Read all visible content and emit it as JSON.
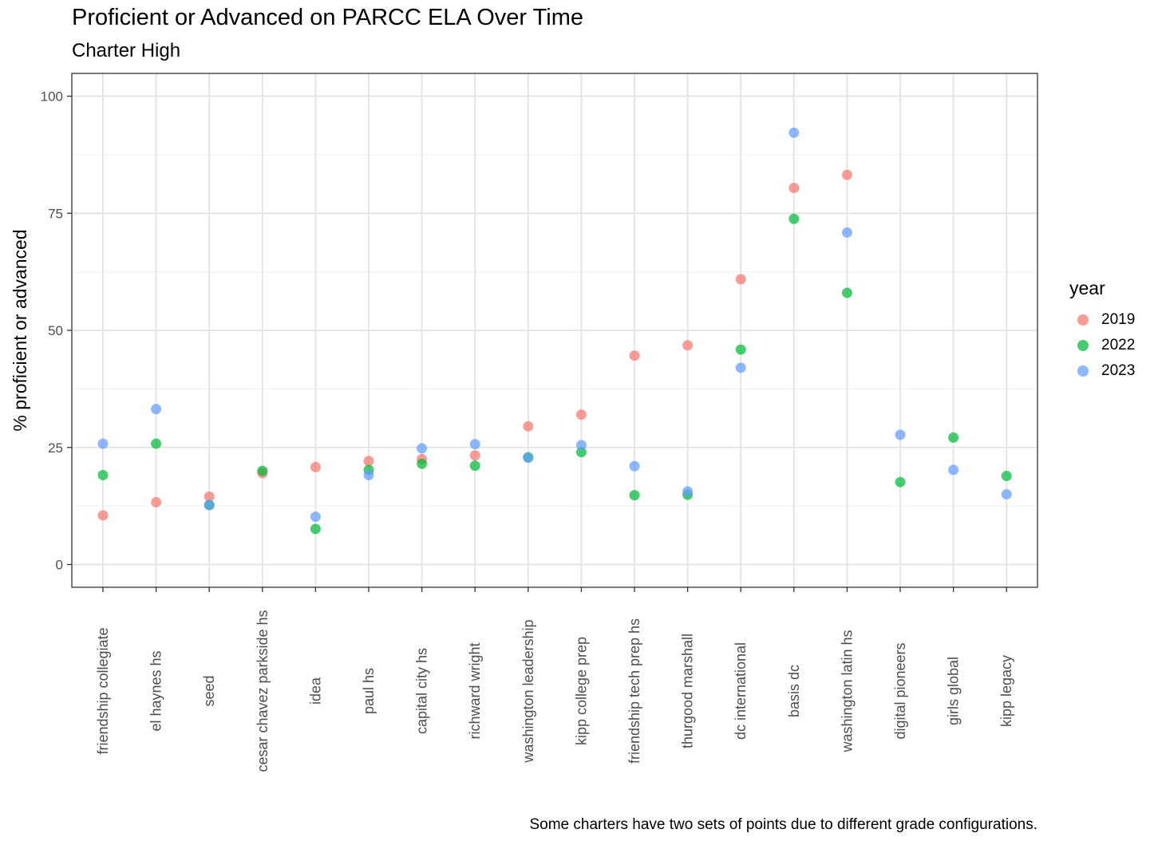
{
  "chart_data": {
    "type": "scatter",
    "title": "Proficient or Advanced on PARCC ELA Over Time",
    "subtitle": "Charter High",
    "xlabel": "",
    "ylabel": "% proficient or advanced",
    "caption": "Some charters have two sets of points due to different grade configurations.",
    "ylim": [
      -5,
      105
    ],
    "yticks": [
      0,
      25,
      50,
      75,
      100
    ],
    "grid": true,
    "legend": {
      "title": "year",
      "position": "right"
    },
    "categories": [
      "friendship collegiate",
      "el haynes hs",
      "seed",
      "cesar chavez parkside hs",
      "idea",
      "paul hs",
      "capital city hs",
      "richward wright",
      "washington leadership",
      "kipp college prep",
      "friendship tech prep hs",
      "thurgood marshall",
      "dc international",
      "basis dc",
      "washington latin hs",
      "digital pioneers",
      "girls global",
      "kipp legacy"
    ],
    "series": [
      {
        "name": "2019",
        "color": "#F8766D",
        "values": [
          10.5,
          13.3,
          14.5,
          19.5,
          20.8,
          22.1,
          22.5,
          23.3,
          29.5,
          32.0,
          44.6,
          46.8,
          60.9,
          80.4,
          83.2,
          null,
          null,
          null
        ]
      },
      {
        "name": "2022",
        "color": "#00BA38",
        "values": [
          19.1,
          25.8,
          12.7,
          20.0,
          7.6,
          20.2,
          21.5,
          21.1,
          22.9,
          24.0,
          14.8,
          14.9,
          45.9,
          73.8,
          58.0,
          17.6,
          27.1,
          18.9
        ]
      },
      {
        "name": "2023",
        "color": "#619CFF",
        "values": [
          25.8,
          33.2,
          12.7,
          null,
          10.2,
          19.1,
          24.8,
          25.7,
          22.8,
          25.5,
          21.0,
          15.6,
          42.0,
          92.2,
          70.9,
          27.7,
          20.2,
          15.0
        ]
      }
    ]
  }
}
